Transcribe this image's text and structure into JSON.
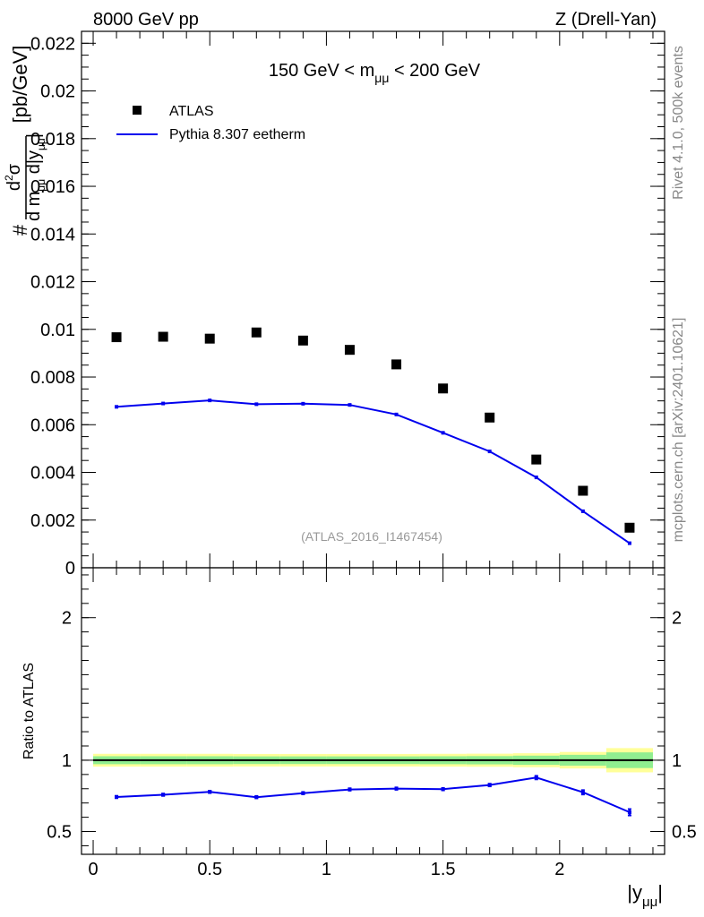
{
  "header": {
    "left": "8000 GeV pp",
    "right": "Z (Drell-Yan)"
  },
  "side_labels": {
    "rivet": "Rivet 4.1.0,  500k events",
    "mcplots": "mcplots.cern.ch [arXiv:2401.10621]"
  },
  "chart_data": [
    {
      "type": "scatter",
      "panel": "main",
      "title": "150 GeV < mμμ < 200 GeV",
      "analysis_tag": "(ATLAS_2016_I1467454)",
      "ylabel": "d²σ / d mμμ d|yμμ| [pb/GeV]",
      "xlabel": "",
      "xlim": [
        -0.05,
        2.45
      ],
      "ylim": [
        0,
        0.0225
      ],
      "yticks": [
        0,
        0.002,
        0.004,
        0.006,
        0.008,
        0.01,
        0.012,
        0.014,
        0.016,
        0.018,
        0.02,
        0.022
      ],
      "ytick_labels": [
        "0",
        "0.002",
        "0.004",
        "0.006",
        "0.008",
        "0.01",
        "0.012",
        "0.014",
        "0.016",
        "0.018",
        "0.02",
        "0.022"
      ],
      "legend": [
        "ATLAS",
        "Pythia 8.307 eetherm"
      ],
      "legend_position": "top-left",
      "series": [
        {
          "name": "ATLAS",
          "style": "markers",
          "color": "#000000",
          "x": [
            0.1,
            0.3,
            0.5,
            0.7,
            0.9,
            1.1,
            1.3,
            1.5,
            1.7,
            1.9,
            2.1,
            2.3
          ],
          "y": [
            0.00967,
            0.00969,
            0.00961,
            0.00987,
            0.00953,
            0.00914,
            0.00853,
            0.00752,
            0.0063,
            0.00454,
            0.00323,
            0.00168
          ]
        },
        {
          "name": "Pythia 8.307 eetherm",
          "style": "line",
          "color": "#0000ee",
          "x": [
            0.1,
            0.3,
            0.5,
            0.7,
            0.9,
            1.1,
            1.3,
            1.5,
            1.7,
            1.9,
            2.1,
            2.3
          ],
          "y": [
            0.00675,
            0.00689,
            0.00702,
            0.00686,
            0.00688,
            0.00683,
            0.00643,
            0.00566,
            0.00488,
            0.00379,
            0.00237,
            0.00103
          ],
          "yerr": [
            4e-05,
            4e-05,
            4e-05,
            4e-05,
            4e-05,
            4e-05,
            4e-05,
            4e-05,
            4e-05,
            4e-05,
            4e-05,
            4e-05
          ]
        }
      ]
    },
    {
      "type": "line",
      "panel": "ratio",
      "ylabel": "Ratio to ATLAS",
      "xlabel": "|yμμ|",
      "xlim": [
        -0.05,
        2.45
      ],
      "ylim": [
        0.34,
        2.35
      ],
      "xticks": [
        0,
        0.5,
        1,
        1.5,
        2
      ],
      "xtick_labels": [
        "0",
        "0.5",
        "1",
        "1.5",
        "2"
      ],
      "yticks": [
        0.5,
        1,
        2
      ],
      "ytick_labels": [
        "0.5",
        "1",
        "2"
      ],
      "reference_line": 1,
      "bands": {
        "bin_edges": [
          0,
          0.2,
          0.4,
          0.6,
          0.8,
          1.0,
          1.2,
          1.4,
          1.6,
          1.8,
          2.0,
          2.2,
          2.4
        ],
        "yellow_halfwidth": [
          0.045,
          0.045,
          0.045,
          0.044,
          0.044,
          0.044,
          0.044,
          0.045,
          0.046,
          0.049,
          0.058,
          0.085
        ],
        "green_halfwidth": [
          0.028,
          0.028,
          0.028,
          0.027,
          0.027,
          0.027,
          0.027,
          0.028,
          0.029,
          0.032,
          0.038,
          0.055
        ],
        "yellow_color": "#ffff99",
        "green_color": "#90ee90"
      },
      "series": [
        {
          "name": "Pythia 8.307 eetherm / ATLAS",
          "color": "#0000ee",
          "x": [
            0.1,
            0.3,
            0.5,
            0.7,
            0.9,
            1.1,
            1.3,
            1.5,
            1.7,
            1.9,
            2.1,
            2.3
          ],
          "y": [
            0.742,
            0.758,
            0.778,
            0.741,
            0.769,
            0.795,
            0.801,
            0.797,
            0.826,
            0.878,
            0.775,
            0.635
          ],
          "yerr": [
            0.008,
            0.008,
            0.008,
            0.008,
            0.008,
            0.008,
            0.008,
            0.008,
            0.009,
            0.012,
            0.015,
            0.022
          ]
        }
      ]
    }
  ]
}
